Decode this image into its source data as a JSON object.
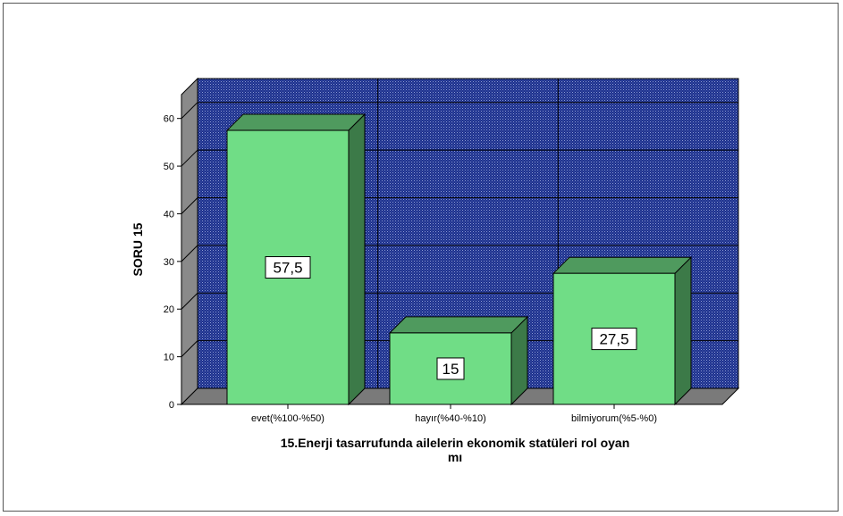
{
  "chart_data": {
    "type": "bar",
    "categories": [
      "evet(%100-%50)",
      "hayır(%40-%10)",
      "bilmiyorum(%5-%0)"
    ],
    "values": [
      57.5,
      15,
      27.5
    ],
    "data_labels": [
      "57,5",
      "15",
      "27,5"
    ],
    "ylabel": "SORU 15",
    "xlabel_lines": [
      "15.Enerji tasarrufunda ailelerin ekonomik statüleri rol oyan",
      "mı"
    ],
    "ylim": [
      0,
      65
    ],
    "yticks": [
      0,
      10,
      20,
      30,
      40,
      50,
      60
    ],
    "grid": true,
    "three_d": true,
    "colors": {
      "bar_front": "#70dd86",
      "bar_top": "#4f9a5e",
      "bar_side": "#3c7a48",
      "wall": "#1a2f8c",
      "floor": "#7a7a7a",
      "grid": "#000000"
    }
  }
}
